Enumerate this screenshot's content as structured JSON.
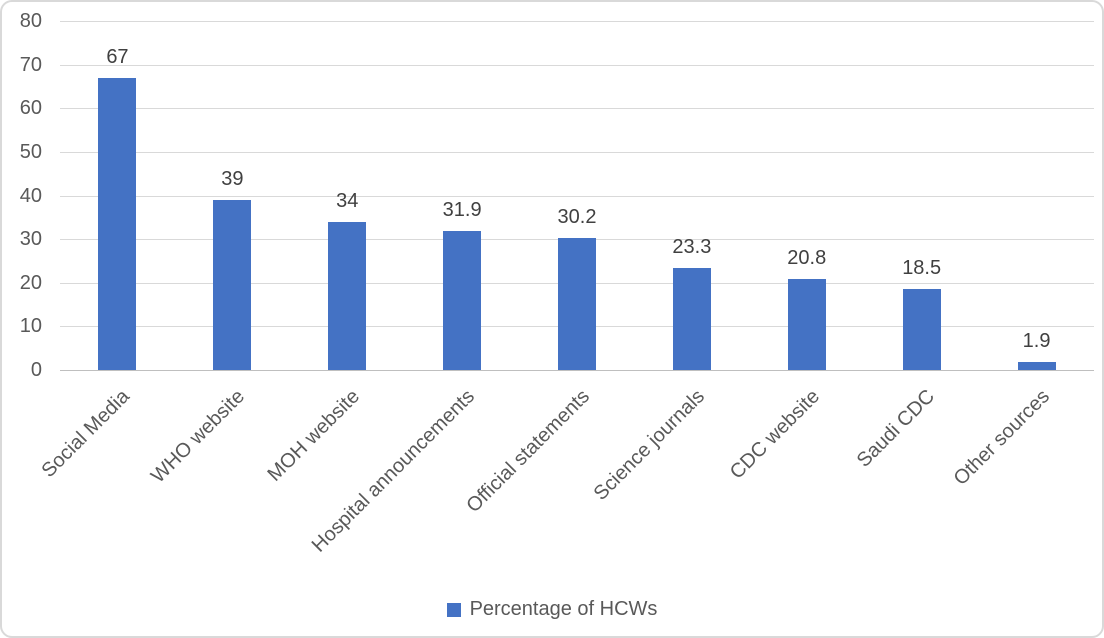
{
  "chart_data": {
    "type": "bar",
    "title": "",
    "xlabel": "",
    "ylabel": "",
    "categories": [
      "Social Media",
      "WHO website",
      "MOH website",
      "Hospital announcements",
      "Official statements",
      "Science journals",
      "CDC website",
      "Saudi CDC",
      "Other sources"
    ],
    "values": [
      67,
      39,
      34,
      31.9,
      30.2,
      23.3,
      20.8,
      18.5,
      1.9
    ],
    "value_labels": [
      "67",
      "39",
      "34",
      "31.9",
      "30.2",
      "23.3",
      "20.8",
      "18.5",
      "1.9"
    ],
    "ylim": [
      0,
      80
    ],
    "yticks": [
      0,
      10,
      20,
      30,
      40,
      50,
      60,
      70,
      80
    ],
    "grid": "horizontal",
    "legend": {
      "label": "Percentage of HCWs",
      "position": "bottom-center"
    },
    "colors": {
      "bar": "#4472c4",
      "gridline": "#d9d9d9",
      "axis_line": "#bfbfbf",
      "tick_text": "#595959",
      "value_text": "#404040",
      "category_text": "#595959",
      "legend_text": "#595959",
      "border": "#d9d9d9",
      "background": "#ffffff"
    }
  }
}
